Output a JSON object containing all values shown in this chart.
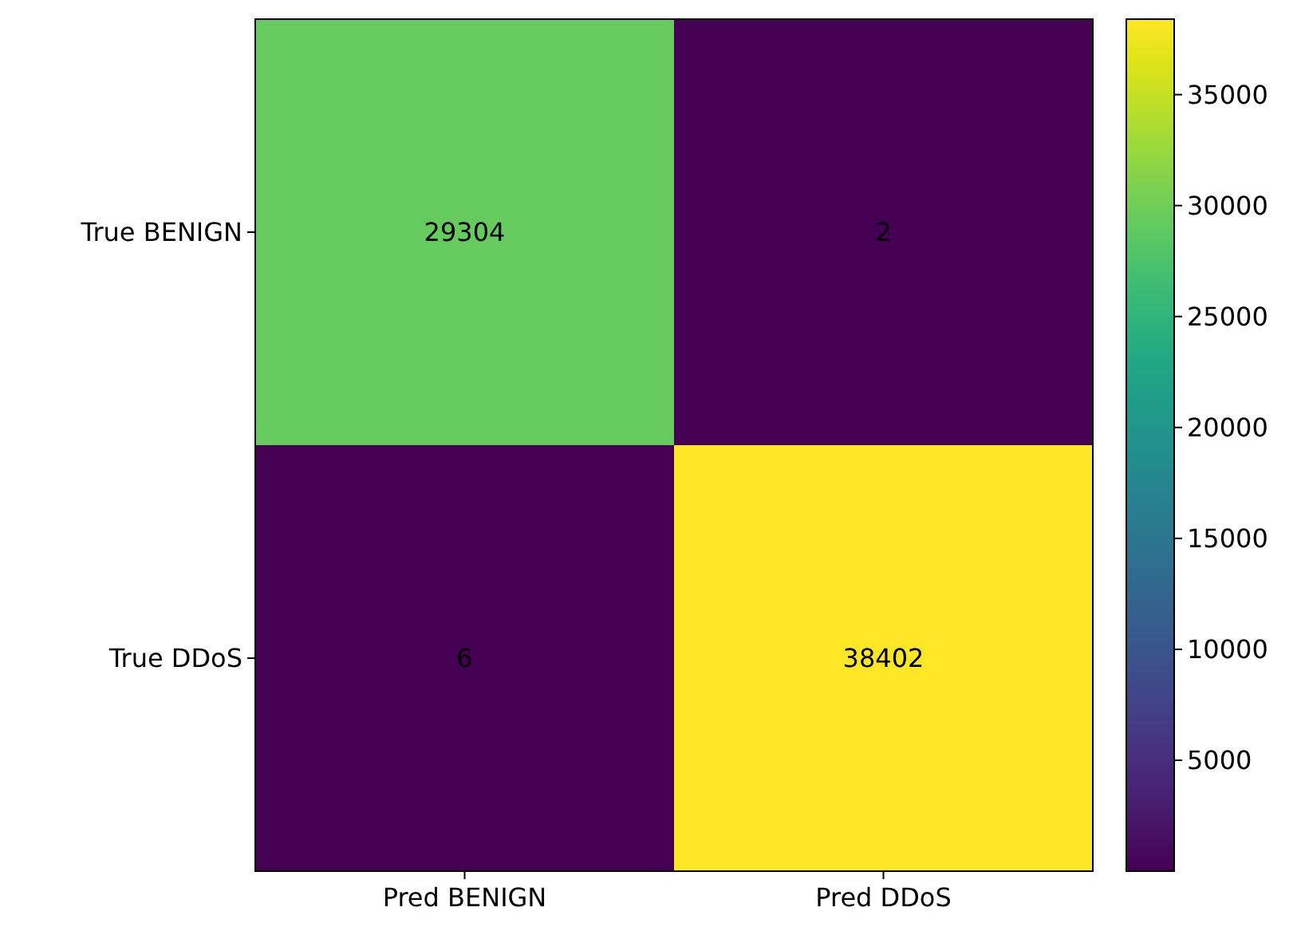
{
  "chart_data": {
    "type": "heatmap",
    "categories": [
      "Pred BENIGN",
      "Pred DDoS"
    ],
    "y_categories": [
      "True BENIGN",
      "True DDoS"
    ],
    "cells": [
      [
        29304,
        2
      ],
      [
        6,
        38402
      ]
    ],
    "clim": [
      2,
      38402
    ],
    "cticks": [
      5000,
      10000,
      15000,
      20000,
      25000,
      30000,
      35000
    ],
    "data_labels": true
  }
}
